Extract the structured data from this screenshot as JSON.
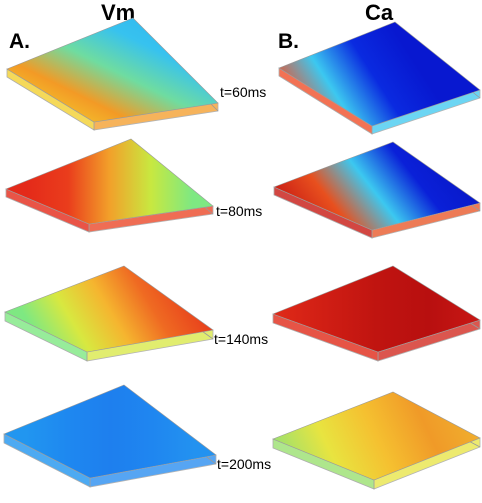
{
  "headers": {
    "left": "Vm",
    "right": "Ca"
  },
  "panels": {
    "left": "A.",
    "right": "B."
  },
  "time_labels": [
    "t=60ms",
    "t=80ms",
    "t=140ms",
    "t=200ms"
  ],
  "colors": {
    "dark_blue": "#0a10c8",
    "blue": "#1e7af0",
    "cyan": "#3cc8f0",
    "green": "#7ee882",
    "yellow": "#f5e53a",
    "orange": "#f08a22",
    "red": "#e52a1a",
    "dark_red": "#b20f0f",
    "box_line": "#9a9a9a"
  },
  "slabs": [
    {
      "name": "vm-60ms",
      "gradient": [
        "#f3d030",
        "#f39a25",
        "#6fdca0",
        "#37c2ef",
        "#2fb6f0"
      ]
    },
    {
      "name": "vm-80ms",
      "gradient": [
        "#e42a1a",
        "#ea3d1c",
        "#f2a02a",
        "#c8e840",
        "#7ee882"
      ]
    },
    {
      "name": "vm-140ms",
      "gradient": [
        "#7ee882",
        "#d8e840",
        "#f5b52f",
        "#ef6a22",
        "#e8421c"
      ]
    },
    {
      "name": "vm-200ms",
      "gradient": [
        "#2196f0",
        "#1e88f0",
        "#1e7fee",
        "#1f86f0",
        "#2392f0"
      ]
    },
    {
      "name": "ca-60ms",
      "gradient": [
        "#f0502a",
        "#3cc8f0",
        "#0a2ae0",
        "#0818d0",
        "#0818d0"
      ]
    },
    {
      "name": "ca-80ms",
      "gradient": [
        "#c81a14",
        "#e8501e",
        "#3cc8f0",
        "#0a20d8",
        "#0818c8"
      ]
    },
    {
      "name": "ca-140ms",
      "gradient": [
        "#e02a18",
        "#d01e14",
        "#c01410",
        "#b80f0f",
        "#c81814"
      ]
    },
    {
      "name": "ca-200ms",
      "gradient": [
        "#9ae070",
        "#e8e440",
        "#f5c030",
        "#f09a28",
        "#f0b02e"
      ]
    }
  ]
}
